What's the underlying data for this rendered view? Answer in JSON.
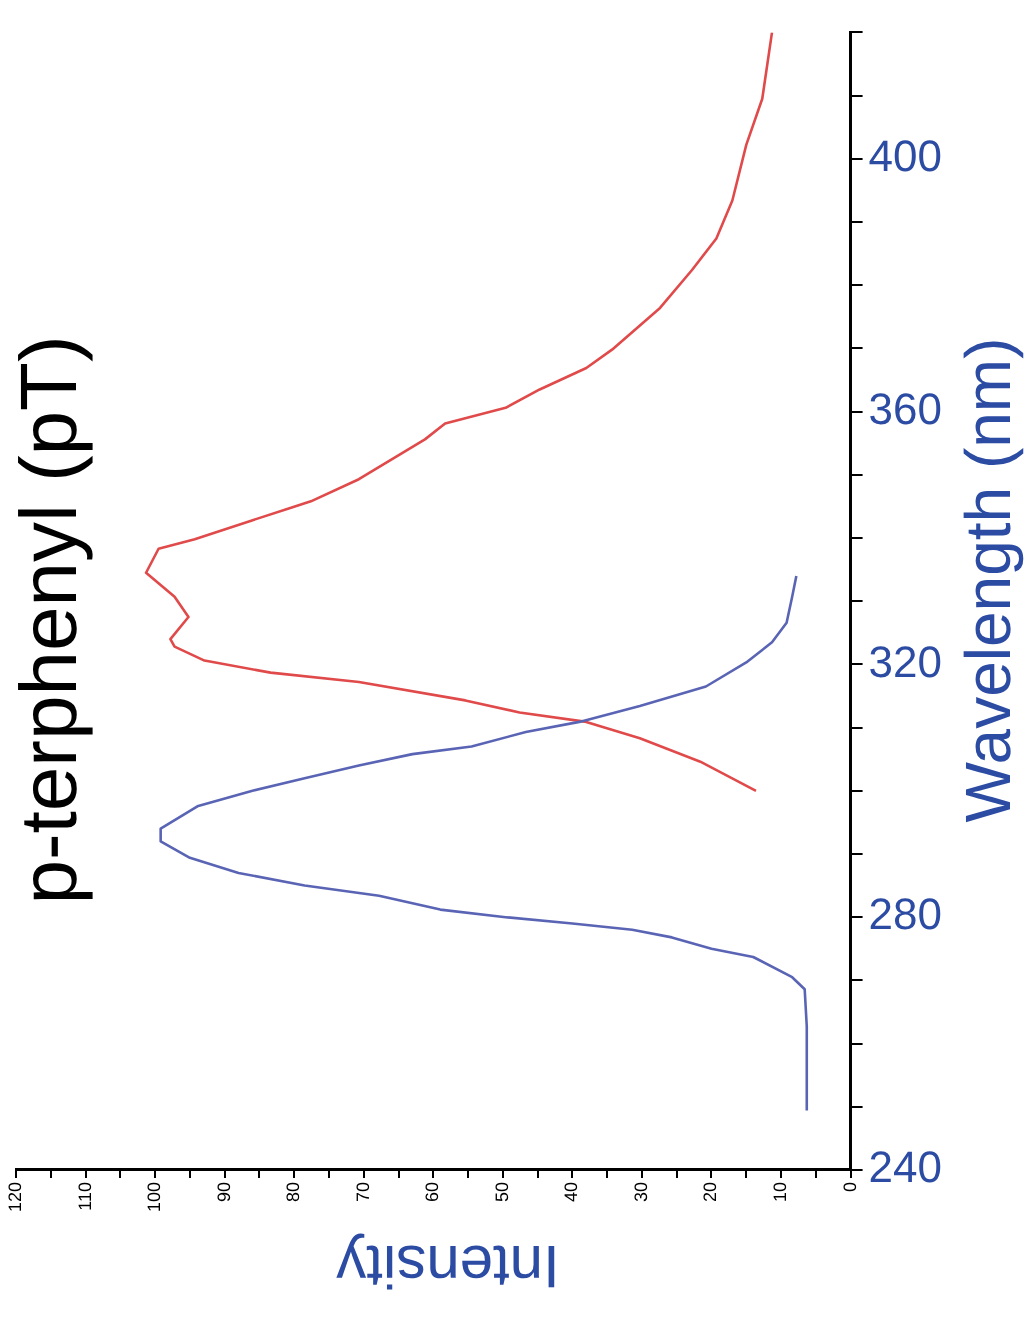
{
  "chart_data": {
    "type": "line",
    "title": "p-terphenyl (pT)",
    "xlabel": "Intensity",
    "ylabel": "Wavelength (nm)",
    "xlim": [
      120,
      0
    ],
    "xticks": [
      0,
      {
        "value": 5,
        "label": null
      },
      10,
      {
        "value": 15,
        "label": null
      },
      20,
      {
        "value": 25,
        "label": null
      },
      30,
      {
        "value": 35,
        "label": null
      },
      40,
      {
        "value": 45,
        "label": null
      },
      50,
      {
        "value": 55,
        "label": null
      },
      60,
      {
        "value": 65,
        "label": null
      },
      70,
      {
        "value": 75,
        "label": null
      },
      80,
      {
        "value": 85,
        "label": null
      },
      90,
      {
        "value": 95,
        "label": null
      },
      100,
      {
        "value": 105,
        "label": null
      },
      110,
      {
        "value": 115,
        "label": null
      },
      120
    ],
    "ylim": [
      240,
      420
    ],
    "yticks": [
      240,
      {
        "value": 250,
        "label": null
      },
      {
        "value": 260,
        "label": null
      },
      {
        "value": 270,
        "label": null
      },
      280,
      {
        "value": 290,
        "label": null
      },
      {
        "value": 300,
        "label": null
      },
      {
        "value": 310,
        "label": null
      },
      320,
      {
        "value": 330,
        "label": null
      },
      {
        "value": 340,
        "label": null
      },
      {
        "value": 350,
        "label": null
      },
      360,
      {
        "value": 370,
        "label": null
      },
      {
        "value": 380,
        "label": null
      },
      {
        "value": 390,
        "label": null
      },
      400,
      {
        "value": 410,
        "label": null
      },
      {
        "value": 420,
        "label": null
      }
    ],
    "grid": false,
    "legend": false,
    "marker": "none",
    "line_style": "solid",
    "series": [
      {
        "color": "#5a64b4",
        "values": [
          249.4,
          262.7,
          268.6,
          270.5,
          273.7,
          275,
          276.8,
          278,
          279,
          280,
          281.2,
          283.4,
          285,
          287,
          289.4,
          292,
          294,
          297.6,
          300,
          302,
          304,
          305.8,
          307,
          309.3,
          310.9,
          313.4,
          316.5,
          320.3,
          323.5,
          326.6,
          330.7,
          334
        ],
        "x": [
          6.3,
          6.3,
          6.6,
          8.4,
          14,
          20,
          25.7,
          31.4,
          40,
          49.6,
          59,
          67.8,
          78.5,
          88,
          95,
          99.2,
          99.2,
          93.8,
          86,
          78.5,
          70.7,
          63,
          54.5,
          46.7,
          39,
          30.3,
          20.8,
          15,
          11.3,
          9.2,
          8.4,
          7.8
        ]
      },
      {
        "color": "#e04a4a",
        "values": [
          300,
          304.6,
          308.3,
          310.9,
          312.4,
          314.3,
          317.2,
          318.7,
          320.6,
          322.8,
          324,
          327.5,
          330.7,
          334.5,
          338.3,
          339.8,
          342.7,
          345.8,
          349.3,
          355.6,
          358.1,
          360.6,
          363.5,
          366.9,
          369.8,
          376.4,
          382.4,
          387.4,
          393.4,
          402.2,
          409.5,
          420
        ],
        "x": [
          13.6,
          21.6,
          30.3,
          38,
          47.6,
          55.4,
          70.7,
          83.4,
          92.9,
          97.2,
          97.8,
          95.2,
          97.2,
          101.3,
          99.5,
          94.3,
          86.3,
          77.6,
          70.7,
          61.2,
          58.3,
          49.6,
          44.7,
          38,
          34.3,
          27.4,
          22.8,
          19.3,
          17,
          15,
          12.7,
          11.3
        ]
      }
    ]
  }
}
